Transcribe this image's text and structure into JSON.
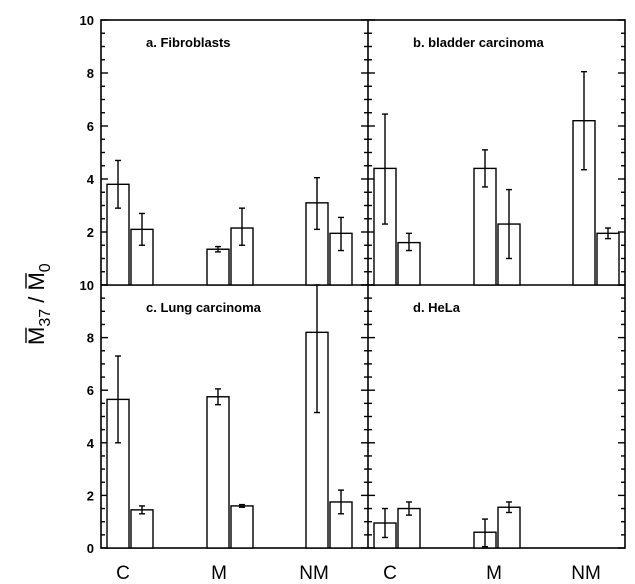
{
  "chart_data": {
    "type": "bar",
    "ylabel": {
      "bar_m": "M",
      "sub": "37",
      "slash": " / ",
      "bar_m2": "M",
      "sub2": "0"
    },
    "ylim": [
      0,
      10
    ],
    "yticks_top": [
      "2",
      "4",
      "6",
      "8",
      "10"
    ],
    "yticks_bottom": [
      "0",
      "2",
      "4",
      "6",
      "8",
      "10"
    ],
    "categories_left": [
      "C",
      "M",
      "NM"
    ],
    "categories_right": [
      "C",
      "M",
      "NM"
    ],
    "panels": [
      {
        "id": "a",
        "title": "a.  Fibroblasts",
        "groups": [
          {
            "category": "C",
            "bars": [
              {
                "value": 3.8,
                "err_low": 2.9,
                "err_high": 4.7
              },
              {
                "value": 2.1,
                "err_low": 1.5,
                "err_high": 2.7
              }
            ]
          },
          {
            "category": "M",
            "bars": [
              {
                "value": 1.35,
                "err_low": 1.25,
                "err_high": 1.45
              },
              {
                "value": 2.15,
                "err_low": 1.5,
                "err_high": 2.9
              }
            ]
          },
          {
            "category": "NM",
            "bars": [
              {
                "value": 3.1,
                "err_low": 2.1,
                "err_high": 4.05
              },
              {
                "value": 1.95,
                "err_low": 1.3,
                "err_high": 2.55
              }
            ]
          }
        ]
      },
      {
        "id": "b",
        "title": "b.  bladder carcinoma",
        "groups": [
          {
            "category": "C",
            "bars": [
              {
                "value": 4.4,
                "err_low": 2.3,
                "err_high": 6.45
              },
              {
                "value": 1.6,
                "err_low": 1.3,
                "err_high": 1.95
              }
            ]
          },
          {
            "category": "M",
            "bars": [
              {
                "value": 4.4,
                "err_low": 3.7,
                "err_high": 5.1
              },
              {
                "value": 2.3,
                "err_low": 1.0,
                "err_high": 3.6
              }
            ]
          },
          {
            "category": "NM",
            "bars": [
              {
                "value": 6.2,
                "err_low": 4.35,
                "err_high": 8.05
              },
              {
                "value": 1.95,
                "err_low": 1.75,
                "err_high": 2.15
              }
            ]
          }
        ]
      },
      {
        "id": "c",
        "title": "c.  Lung carcinoma",
        "groups": [
          {
            "category": "C",
            "bars": [
              {
                "value": 5.65,
                "err_low": 4.0,
                "err_high": 7.3
              },
              {
                "value": 1.45,
                "err_low": 1.3,
                "err_high": 1.6
              }
            ]
          },
          {
            "category": "M",
            "bars": [
              {
                "value": 5.75,
                "err_low": 5.45,
                "err_high": 6.05
              },
              {
                "value": 1.6,
                "err_low": 1.55,
                "err_high": 1.65
              }
            ]
          },
          {
            "category": "NM",
            "bars": [
              {
                "value": 8.2,
                "err_low": 5.15,
                "err_high": 10.0
              },
              {
                "value": 1.75,
                "err_low": 1.3,
                "err_high": 2.2
              }
            ]
          }
        ]
      },
      {
        "id": "d",
        "title": "d.  HeLa",
        "groups": [
          {
            "category": "C",
            "bars": [
              {
                "value": 0.95,
                "err_low": 0.4,
                "err_high": 1.5
              },
              {
                "value": 1.5,
                "err_low": 1.25,
                "err_high": 1.75
              }
            ]
          },
          {
            "category": "M",
            "bars": [
              {
                "value": 0.6,
                "err_low": 0.05,
                "err_high": 1.1
              },
              {
                "value": 1.55,
                "err_low": 1.35,
                "err_high": 1.75
              }
            ]
          },
          {
            "category": "NM",
            "bars": []
          }
        ]
      }
    ]
  }
}
